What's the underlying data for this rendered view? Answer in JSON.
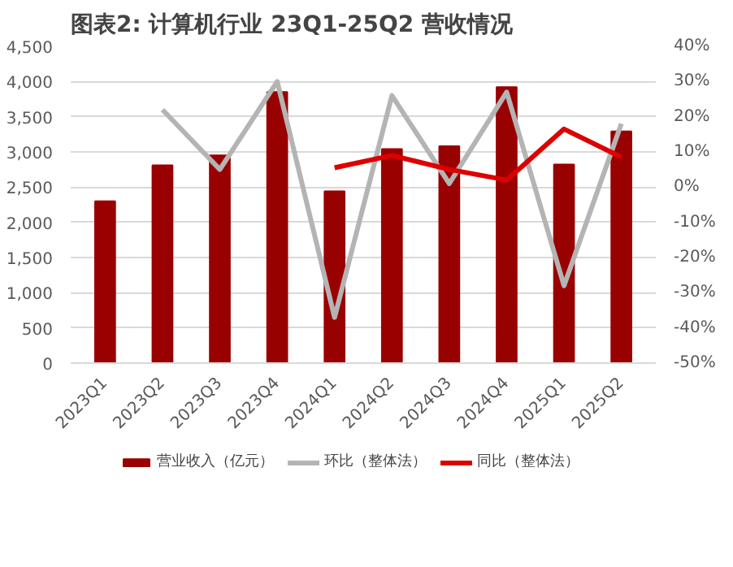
{
  "chart_data": {
    "type": "bar",
    "title": "图表2: 计算机行业 23Q1-25Q2 营收情况",
    "categories": [
      "2023Q1",
      "2023Q2",
      "2023Q3",
      "2023Q4",
      "2024Q1",
      "2024Q2",
      "2024Q3",
      "2024Q4",
      "2025Q1",
      "2025Q2"
    ],
    "series": [
      {
        "name": "营业收入（亿元）",
        "color": "#990000",
        "values": [
          2300,
          2810,
          2950,
          3850,
          2440,
          3040,
          3080,
          3920,
          2820,
          3290
        ]
      },
      {
        "name": "环比（整体法）",
        "type": "line",
        "axis": "y2",
        "color": "#b4b4b4",
        "values": [
          null,
          22,
          5,
          30,
          -37,
          26,
          1,
          27,
          -28,
          18
        ]
      },
      {
        "name": "同比（整体法）",
        "type": "line",
        "axis": "y2",
        "color": "#dd0000",
        "values": [
          null,
          null,
          null,
          null,
          5.5,
          9,
          5,
          2,
          16.5,
          8.5
        ]
      }
    ],
    "ylim": [
      0,
      4500
    ],
    "yticks": [
      {
        "value": 0,
        "label": "0"
      },
      {
        "value": 500,
        "label": "500"
      },
      {
        "value": 1000,
        "label": "1,000"
      },
      {
        "value": 1500,
        "label": "1,500"
      },
      {
        "value": 2000,
        "label": "2,000"
      },
      {
        "value": 2500,
        "label": "2,500"
      },
      {
        "value": 3000,
        "label": "3,000"
      },
      {
        "value": 3500,
        "label": "3,500"
      },
      {
        "value": 4000,
        "label": "4,000"
      },
      {
        "value": 4500,
        "label": "4,500"
      }
    ],
    "y2lim": [
      -50,
      40
    ],
    "y2ticks": [
      {
        "value": -50,
        "label": "-50%"
      },
      {
        "value": -40,
        "label": "-40%"
      },
      {
        "value": -30,
        "label": "-30%"
      },
      {
        "value": -20,
        "label": "-20%"
      },
      {
        "value": -10,
        "label": "-10%"
      },
      {
        "value": 0,
        "label": "0%"
      },
      {
        "value": 10,
        "label": "10%"
      },
      {
        "value": 20,
        "label": "20%"
      },
      {
        "value": 30,
        "label": "30%"
      },
      {
        "value": 40,
        "label": "40%"
      }
    ],
    "grid": "y",
    "legend": "bottom"
  }
}
